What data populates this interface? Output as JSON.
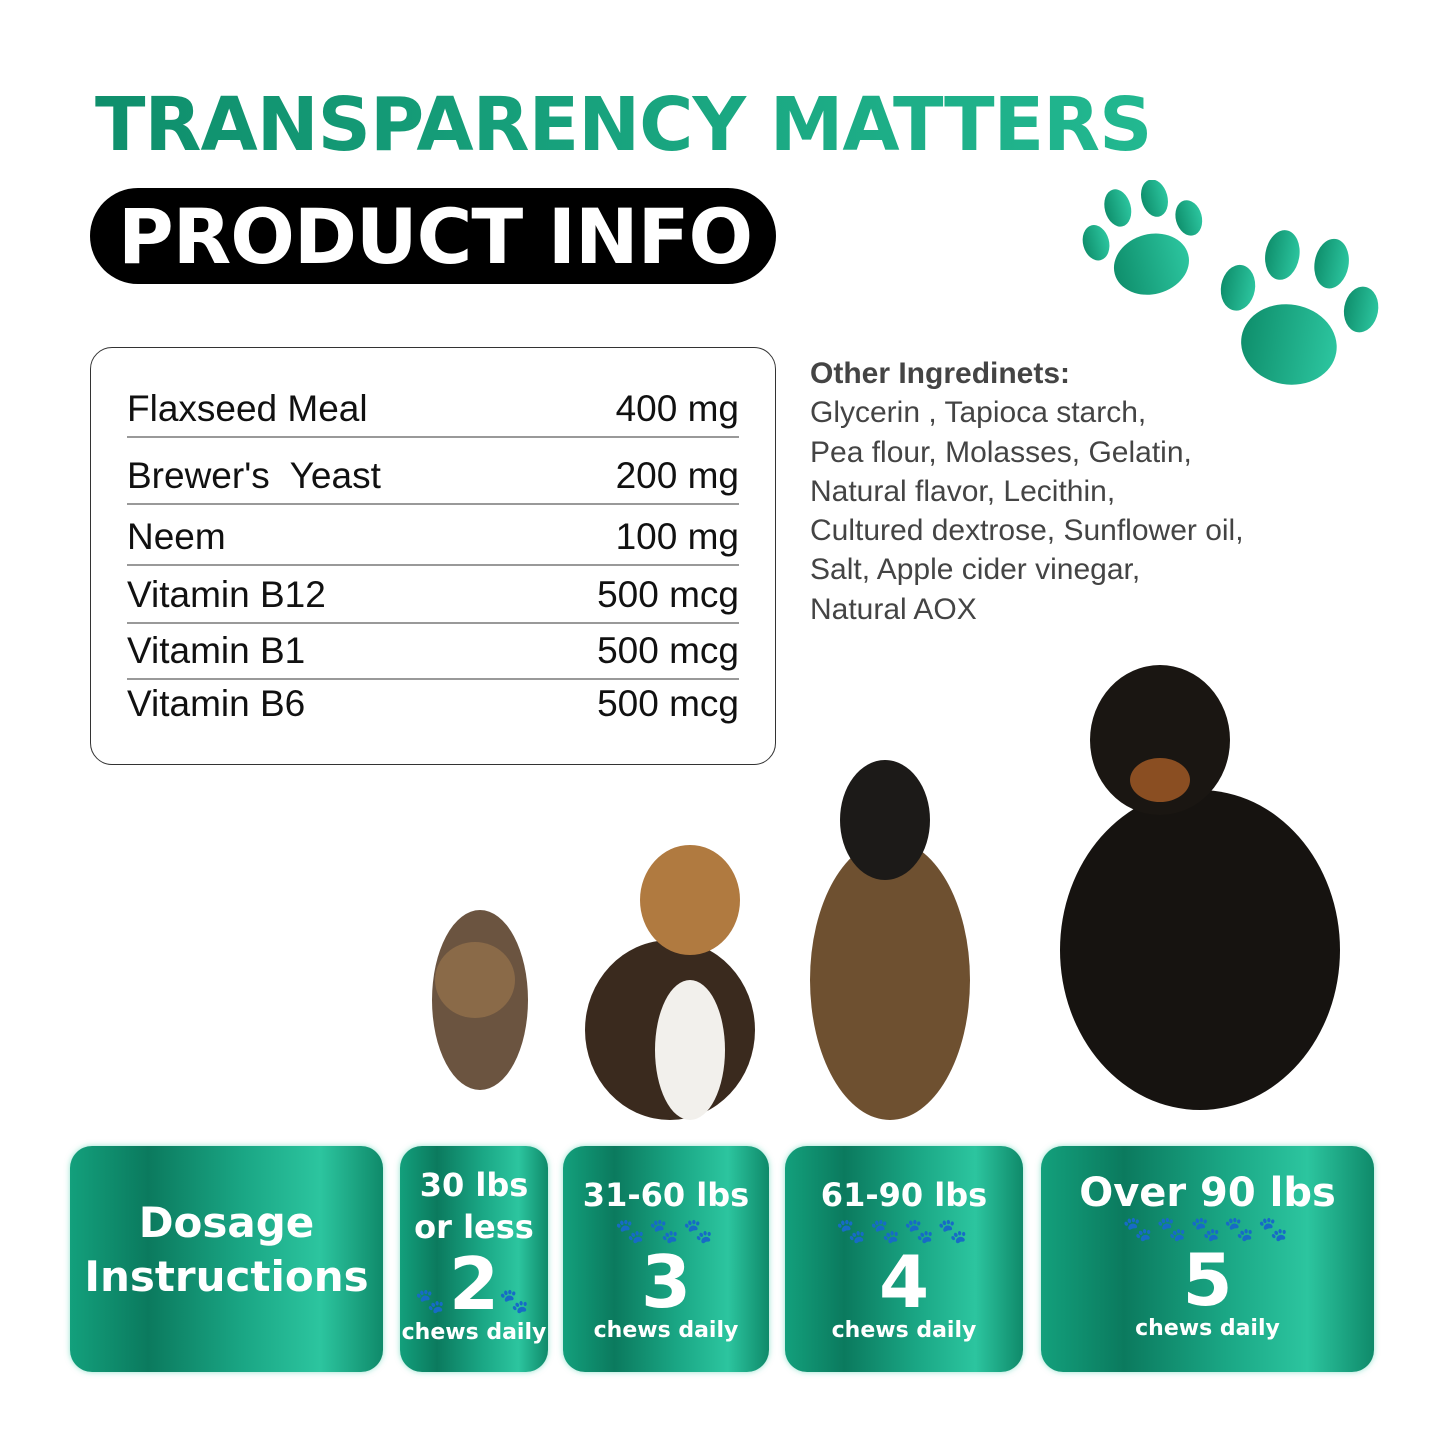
{
  "header": {
    "title": "TRANSPARENCY MATTERS",
    "subtitle": "PRODUCT INFO"
  },
  "ingredients": [
    {
      "name": "Flaxseed Meal",
      "amount": "400 mg"
    },
    {
      "name": "Brewer's  Yeast",
      "amount": "200 mg"
    },
    {
      "name": "Neem",
      "amount": "100 mg"
    },
    {
      "name": "Vitamin B12",
      "amount": "500 mcg"
    },
    {
      "name": "Vitamin B1",
      "amount": "500 mcg"
    },
    {
      "name": "Vitamin B6",
      "amount": "500 mcg"
    }
  ],
  "other": {
    "heading": "Other Ingredinets:",
    "lines": [
      "Glycerin , Tapioca starch,",
      "Pea flour, Molasses, Gelatin,",
      "Natural flavor, Lecithin,",
      "Cultured dextrose, Sunflower oil,",
      "Salt, Apple cider vinegar,",
      "Natural AOX"
    ]
  },
  "dosage": {
    "label_1": "Dosage",
    "label_2": "Instructions",
    "tiers": [
      {
        "weight_1": "30 lbs",
        "weight_2": "or less",
        "count": "2",
        "unit": "chews daily",
        "paws": 2
      },
      {
        "weight_1": "31-60 lbs",
        "count": "3",
        "unit": "chews daily",
        "paws": 3
      },
      {
        "weight_1": "61-90 lbs",
        "count": "4",
        "unit": "chews daily",
        "paws": 4
      },
      {
        "weight_1": "Over 90 lbs",
        "count": "5",
        "unit": "chews daily",
        "paws": 5
      }
    ]
  },
  "colors": {
    "accent": "#17a07e",
    "dark": "#000000"
  },
  "icons": [
    "paw-print-icon"
  ]
}
